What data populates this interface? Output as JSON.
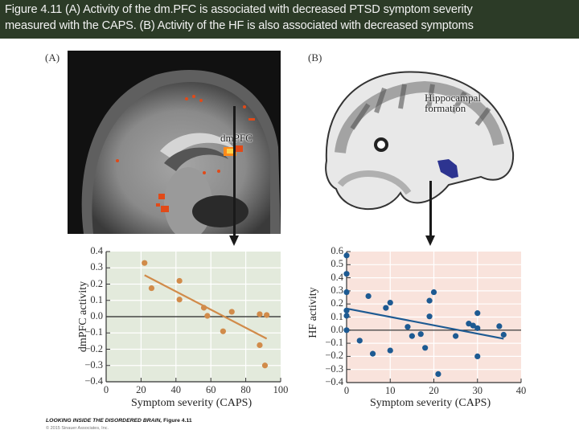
{
  "header": {
    "line1": "Figure 4.11  (A) Activity of the dm.PFC is associated with decreased PTSD symptom severity",
    "line2": "measured with the CAPS. (B) Activity of the HF is also associated with decreased symptoms",
    "background": "#2c3b27"
  },
  "panels": {
    "a": {
      "label": "(A)",
      "region_label": "dmPFC"
    },
    "b": {
      "label": "(B)",
      "region_label_line1": "Hippocampal",
      "region_label_line2": "formation"
    }
  },
  "footer": {
    "book_title": "LOOKING INSIDE THE DISORDERED BRAIN,",
    "figure_ref": " Figure 4.11",
    "copyright": "© 2015 Sinauer Associates, Inc."
  },
  "chart_data": [
    {
      "type": "scatter",
      "title": "",
      "xlabel": "Symptom severity (CAPS)",
      "ylabel": "dmPFC activity",
      "xlim": [
        0,
        100
      ],
      "ylim": [
        -0.4,
        0.4
      ],
      "xticks": [
        "0",
        "20",
        "40",
        "60",
        "80",
        "100"
      ],
      "yticks": [
        "0.4",
        "0.3",
        "0.2",
        "0.1",
        "0.0",
        "−0.1",
        "−0.2",
        "−0.3",
        "−0.4"
      ],
      "grid": true,
      "background": "#e3eadc",
      "point_color": "#d18b4a",
      "points": [
        {
          "x": 22,
          "y": 0.33
        },
        {
          "x": 26,
          "y": 0.175
        },
        {
          "x": 42,
          "y": 0.22
        },
        {
          "x": 42,
          "y": 0.105
        },
        {
          "x": 56,
          "y": 0.055
        },
        {
          "x": 58,
          "y": 0.005
        },
        {
          "x": 67,
          "y": -0.09
        },
        {
          "x": 72,
          "y": 0.03
        },
        {
          "x": 88,
          "y": 0.015
        },
        {
          "x": 92,
          "y": 0.01
        },
        {
          "x": 88,
          "y": -0.175
        },
        {
          "x": 91,
          "y": -0.3
        }
      ],
      "fit_line": {
        "x1": 22,
        "y1": 0.255,
        "x2": 92,
        "y2": -0.135
      }
    },
    {
      "type": "scatter",
      "title": "",
      "xlabel": "Symptom severity (CAPS)",
      "ylabel": "HF activity",
      "xlim": [
        0,
        40
      ],
      "ylim": [
        -0.4,
        0.6
      ],
      "xticks": [
        "0",
        "10",
        "20",
        "30",
        "40"
      ],
      "yticks": [
        "0.6",
        "0.5",
        "0.4",
        "0.3",
        "0.2",
        "0.1",
        "0.0",
        "−0.1",
        "−0.2",
        "−0.3",
        "−0.4"
      ],
      "grid": true,
      "background": "#f9e3dc",
      "point_color": "#1d5a92",
      "points": [
        {
          "x": 0,
          "y": 0.57
        },
        {
          "x": 0,
          "y": 0.43
        },
        {
          "x": 0,
          "y": 0.29
        },
        {
          "x": 0,
          "y": 0.15
        },
        {
          "x": 0,
          "y": 0.11
        },
        {
          "x": 0,
          "y": 0.0
        },
        {
          "x": 3,
          "y": -0.08
        },
        {
          "x": 5,
          "y": 0.26
        },
        {
          "x": 6,
          "y": -0.18
        },
        {
          "x": 9,
          "y": 0.17
        },
        {
          "x": 10,
          "y": 0.21
        },
        {
          "x": 10,
          "y": -0.155
        },
        {
          "x": 14,
          "y": 0.025
        },
        {
          "x": 15,
          "y": -0.045
        },
        {
          "x": 17,
          "y": -0.03
        },
        {
          "x": 18,
          "y": -0.135
        },
        {
          "x": 19,
          "y": 0.225
        },
        {
          "x": 19,
          "y": 0.105
        },
        {
          "x": 20,
          "y": 0.29
        },
        {
          "x": 21,
          "y": -0.335
        },
        {
          "x": 25,
          "y": -0.045
        },
        {
          "x": 28,
          "y": 0.05
        },
        {
          "x": 29,
          "y": 0.035
        },
        {
          "x": 30,
          "y": 0.13
        },
        {
          "x": 30,
          "y": 0.015
        },
        {
          "x": 30,
          "y": -0.2
        },
        {
          "x": 35,
          "y": 0.03
        },
        {
          "x": 36,
          "y": -0.035
        }
      ],
      "fit_line": {
        "x1": 0,
        "y1": 0.165,
        "x2": 36,
        "y2": -0.065
      }
    }
  ]
}
